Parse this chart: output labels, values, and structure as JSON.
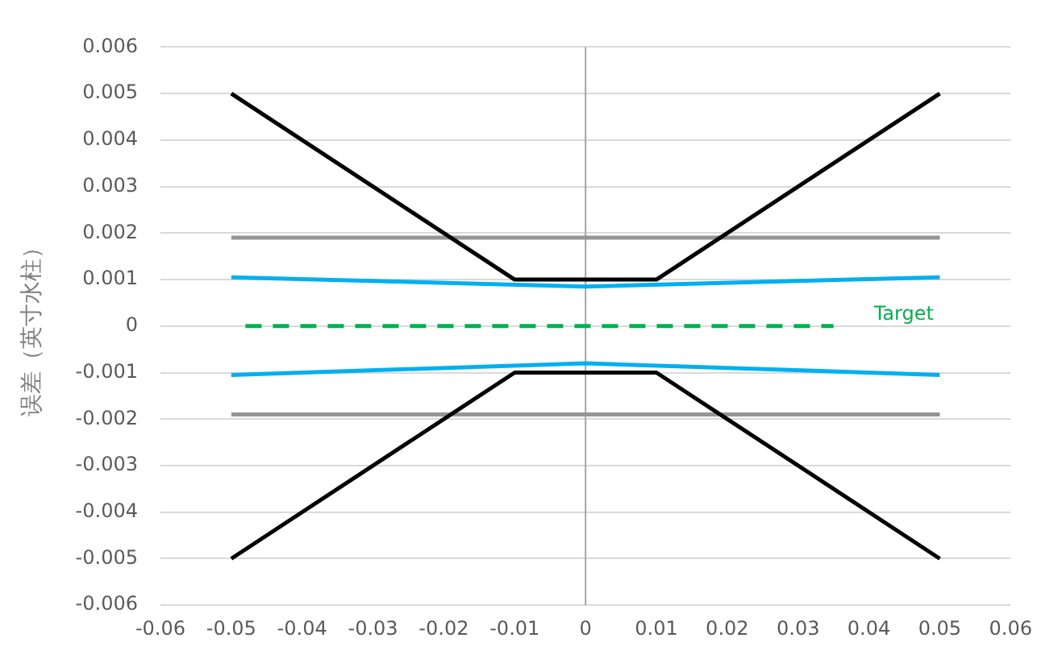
{
  "chart_data": {
    "type": "line",
    "ylabel": "误差（英寸水柱）",
    "xlim": [
      -0.06,
      0.06
    ],
    "xticks": [
      -0.06,
      -0.05,
      -0.04,
      -0.03,
      -0.02,
      -0.01,
      0,
      0.01,
      0.02,
      0.03,
      0.04,
      0.05,
      0.06
    ],
    "ylim": [
      -0.006,
      0.006
    ],
    "yticks": [
      -0.006,
      -0.005,
      -0.004,
      -0.003,
      -0.002,
      -0.001,
      0,
      0.001,
      0.002,
      0.003,
      0.004,
      0.005,
      0.006
    ],
    "grid": "y",
    "legend": false,
    "marker": "none",
    "ref_lines": [
      {
        "axis": "x",
        "value": 0,
        "color": "#a6a6a6"
      }
    ],
    "series": [
      {
        "color": "#000000",
        "x": [
          -0.05,
          -0.01,
          0.01,
          0.05
        ],
        "values": [
          0.005,
          0.001,
          0.001,
          0.005
        ]
      },
      {
        "color": "#000000",
        "x": [
          -0.05,
          -0.01,
          0.01,
          0.05
        ],
        "values": [
          -0.005,
          -0.001,
          -0.001,
          -0.005
        ]
      },
      {
        "color": "#959595",
        "x": [
          -0.05,
          0.05
        ],
        "values": [
          0.0019,
          0.0019
        ]
      },
      {
        "color": "#959595",
        "x": [
          -0.05,
          0.05
        ],
        "values": [
          -0.0019,
          -0.0019
        ]
      },
      {
        "color": "#00b0f0",
        "x": [
          -0.05,
          0,
          0.05
        ],
        "values": [
          0.00105,
          0.00085,
          0.00105
        ]
      },
      {
        "color": "#00b0f0",
        "x": [
          -0.05,
          0,
          0.05
        ],
        "values": [
          -0.00105,
          -0.0008,
          -0.00105
        ]
      },
      {
        "name": "Target",
        "color": "#00b050",
        "line_style": "dashed",
        "x": [
          -0.048,
          0.035
        ],
        "values": [
          0,
          0
        ]
      }
    ]
  }
}
